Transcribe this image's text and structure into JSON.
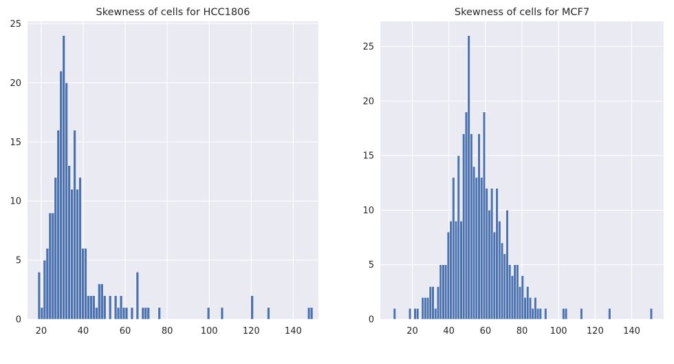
{
  "chart_data": [
    {
      "type": "bar",
      "title": "Skewness of cells for HCC1806",
      "xlabel": "",
      "ylabel": "",
      "xlim": [
        13.5,
        152.0
      ],
      "ylim": [
        0,
        25.2
      ],
      "xticks": [
        20,
        40,
        60,
        80,
        100,
        120,
        140
      ],
      "yticks": [
        0,
        5,
        10,
        15,
        20,
        25
      ],
      "bin_width": 1.3,
      "grid": true,
      "bar_color": "#4c72b0",
      "bins": [
        {
          "x": 18.4,
          "count": 4
        },
        {
          "x": 19.7,
          "count": 1
        },
        {
          "x": 21.0,
          "count": 5
        },
        {
          "x": 22.3,
          "count": 6
        },
        {
          "x": 23.6,
          "count": 9
        },
        {
          "x": 24.9,
          "count": 9
        },
        {
          "x": 26.2,
          "count": 12
        },
        {
          "x": 27.5,
          "count": 16
        },
        {
          "x": 28.8,
          "count": 21
        },
        {
          "x": 30.1,
          "count": 24
        },
        {
          "x": 31.4,
          "count": 20
        },
        {
          "x": 32.7,
          "count": 13
        },
        {
          "x": 34.0,
          "count": 11
        },
        {
          "x": 35.3,
          "count": 16
        },
        {
          "x": 36.6,
          "count": 11
        },
        {
          "x": 37.9,
          "count": 12
        },
        {
          "x": 39.2,
          "count": 6
        },
        {
          "x": 40.5,
          "count": 6
        },
        {
          "x": 41.8,
          "count": 2
        },
        {
          "x": 43.1,
          "count": 2
        },
        {
          "x": 44.4,
          "count": 2
        },
        {
          "x": 45.7,
          "count": 1
        },
        {
          "x": 47.0,
          "count": 3
        },
        {
          "x": 48.3,
          "count": 3
        },
        {
          "x": 49.6,
          "count": 2
        },
        {
          "x": 52.2,
          "count": 2
        },
        {
          "x": 54.8,
          "count": 2
        },
        {
          "x": 56.1,
          "count": 1
        },
        {
          "x": 57.4,
          "count": 2
        },
        {
          "x": 58.7,
          "count": 1
        },
        {
          "x": 60.0,
          "count": 1
        },
        {
          "x": 62.6,
          "count": 1
        },
        {
          "x": 65.2,
          "count": 4
        },
        {
          "x": 67.8,
          "count": 1
        },
        {
          "x": 69.1,
          "count": 1
        },
        {
          "x": 70.4,
          "count": 1
        },
        {
          "x": 75.6,
          "count": 1
        },
        {
          "x": 99.0,
          "count": 1
        },
        {
          "x": 105.5,
          "count": 1
        },
        {
          "x": 119.8,
          "count": 2
        },
        {
          "x": 127.6,
          "count": 1
        },
        {
          "x": 146.8,
          "count": 1
        },
        {
          "x": 148.1,
          "count": 1
        }
      ]
    },
    {
      "type": "bar",
      "title": "Skewness of cells for MCF7",
      "xlabel": "",
      "ylabel": "",
      "xlim": [
        2.5,
        157.5
      ],
      "ylim": [
        0,
        27.3
      ],
      "xticks": [
        20,
        40,
        60,
        80,
        100,
        120,
        140
      ],
      "yticks": [
        0,
        5,
        10,
        15,
        20,
        25
      ],
      "bin_width": 1.4,
      "grid": true,
      "bar_color": "#4c72b0",
      "bins": [
        {
          "x": 9.6,
          "count": 1
        },
        {
          "x": 18.0,
          "count": 1
        },
        {
          "x": 20.8,
          "count": 1
        },
        {
          "x": 22.2,
          "count": 1
        },
        {
          "x": 25.0,
          "count": 2
        },
        {
          "x": 26.4,
          "count": 2
        },
        {
          "x": 27.8,
          "count": 2
        },
        {
          "x": 29.2,
          "count": 3
        },
        {
          "x": 30.6,
          "count": 3
        },
        {
          "x": 32.0,
          "count": 1
        },
        {
          "x": 33.4,
          "count": 3
        },
        {
          "x": 34.8,
          "count": 5
        },
        {
          "x": 36.2,
          "count": 5
        },
        {
          "x": 37.6,
          "count": 5
        },
        {
          "x": 39.0,
          "count": 8
        },
        {
          "x": 40.4,
          "count": 9
        },
        {
          "x": 41.8,
          "count": 13
        },
        {
          "x": 43.2,
          "count": 9
        },
        {
          "x": 44.6,
          "count": 15
        },
        {
          "x": 46.0,
          "count": 9
        },
        {
          "x": 47.4,
          "count": 17
        },
        {
          "x": 48.8,
          "count": 19
        },
        {
          "x": 50.2,
          "count": 26
        },
        {
          "x": 51.6,
          "count": 17
        },
        {
          "x": 53.0,
          "count": 14
        },
        {
          "x": 54.4,
          "count": 13
        },
        {
          "x": 55.8,
          "count": 17
        },
        {
          "x": 57.2,
          "count": 13
        },
        {
          "x": 58.6,
          "count": 19
        },
        {
          "x": 60.0,
          "count": 12
        },
        {
          "x": 61.4,
          "count": 10
        },
        {
          "x": 62.8,
          "count": 12
        },
        {
          "x": 64.2,
          "count": 8
        },
        {
          "x": 65.6,
          "count": 12
        },
        {
          "x": 67.0,
          "count": 9
        },
        {
          "x": 68.4,
          "count": 7
        },
        {
          "x": 69.8,
          "count": 6
        },
        {
          "x": 71.2,
          "count": 10
        },
        {
          "x": 72.6,
          "count": 5
        },
        {
          "x": 74.0,
          "count": 4
        },
        {
          "x": 75.4,
          "count": 5
        },
        {
          "x": 76.8,
          "count": 5
        },
        {
          "x": 78.2,
          "count": 3
        },
        {
          "x": 79.6,
          "count": 4
        },
        {
          "x": 81.0,
          "count": 2
        },
        {
          "x": 82.4,
          "count": 3
        },
        {
          "x": 83.8,
          "count": 2
        },
        {
          "x": 85.2,
          "count": 1
        },
        {
          "x": 86.6,
          "count": 2
        },
        {
          "x": 88.0,
          "count": 1
        },
        {
          "x": 89.4,
          "count": 1
        },
        {
          "x": 92.2,
          "count": 1
        },
        {
          "x": 102.0,
          "count": 1
        },
        {
          "x": 103.4,
          "count": 1
        },
        {
          "x": 111.8,
          "count": 1
        },
        {
          "x": 127.2,
          "count": 1
        },
        {
          "x": 150.0,
          "count": 1
        }
      ]
    }
  ]
}
